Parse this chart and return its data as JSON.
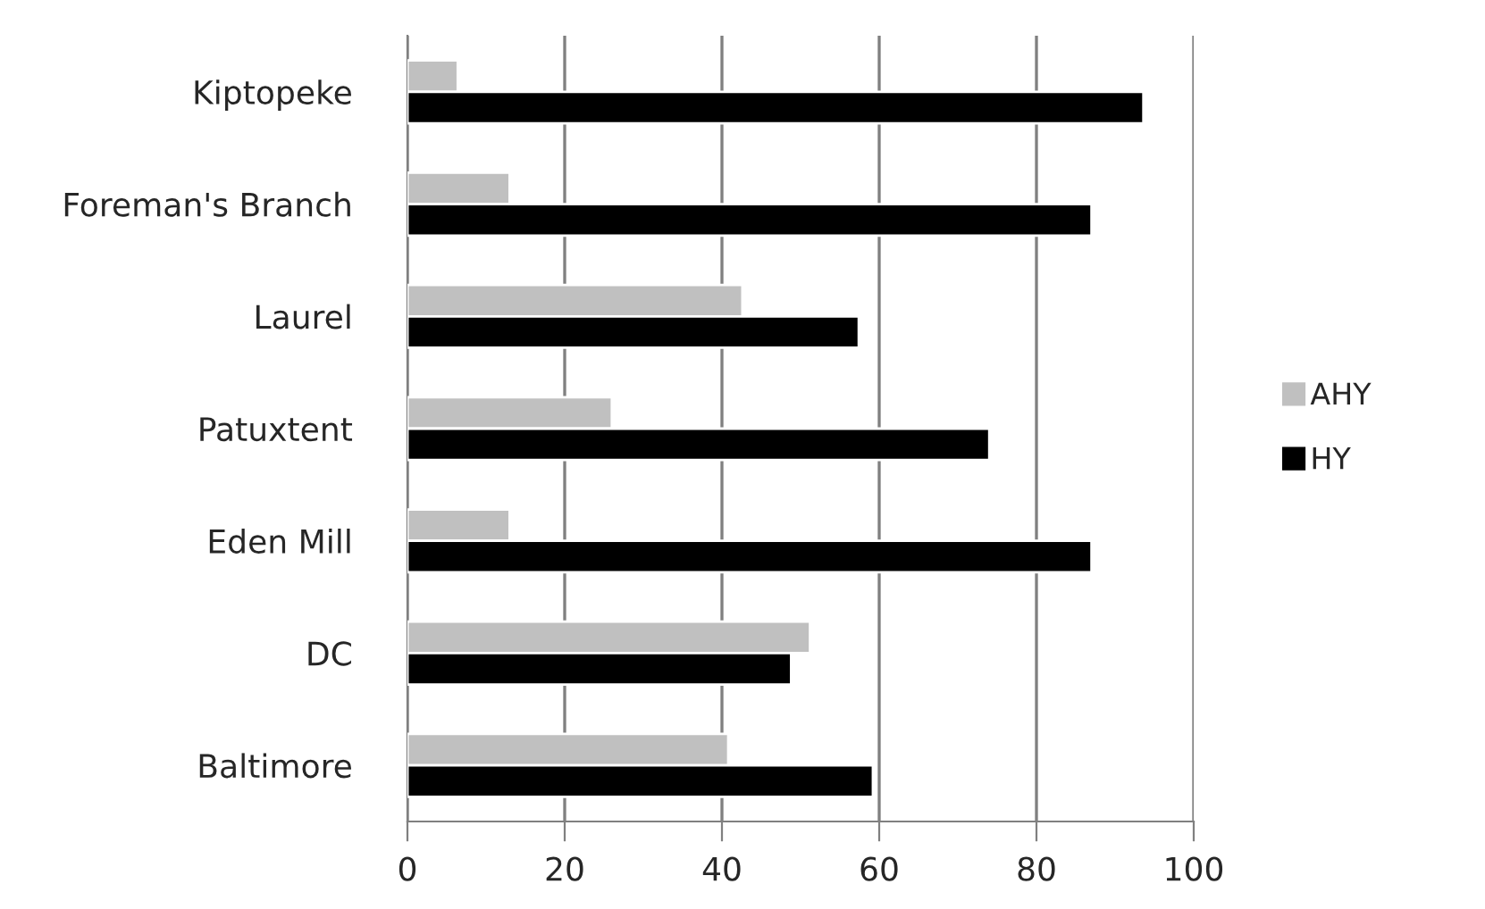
{
  "chart_data": {
    "type": "bar",
    "orientation": "horizontal",
    "categories": [
      "Kiptopeke",
      "Foreman's Branch",
      "Laurel",
      "Patuxtent",
      "Eden Mill",
      "DC",
      "Baltimore"
    ],
    "series": [
      {
        "name": "AHY",
        "color": "#c0c0c0",
        "values": [
          6.4,
          13.0,
          42.6,
          26.0,
          13.0,
          51.2,
          40.8
        ]
      },
      {
        "name": "HY",
        "color": "#000000",
        "values": [
          93.6,
          87.0,
          57.4,
          74.0,
          87.0,
          48.8,
          59.2
        ]
      }
    ],
    "xlim": [
      0,
      100
    ],
    "xticks": [
      0,
      20,
      40,
      60,
      80,
      100
    ],
    "grid": "x",
    "legend": "right"
  }
}
